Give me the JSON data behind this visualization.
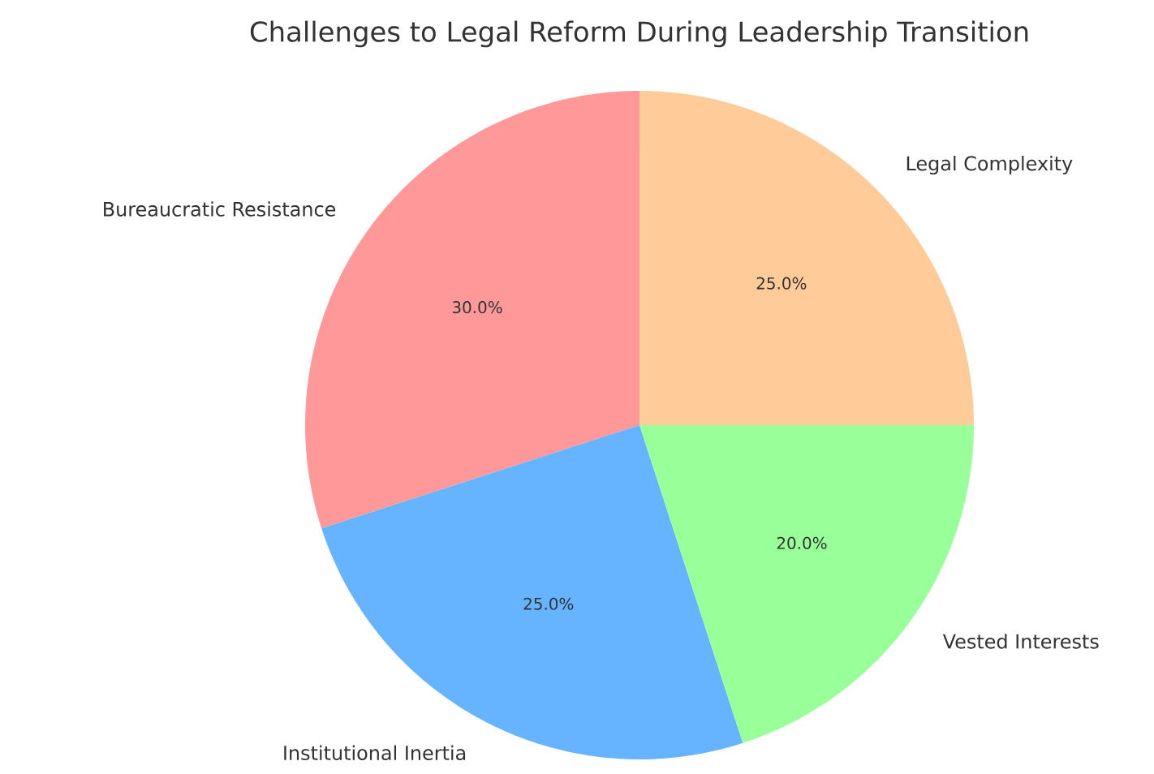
{
  "chart_data": {
    "type": "pie",
    "title": "Challenges to Legal Reform During Leadership Transition",
    "categories": [
      "Bureaucratic Resistance",
      "Institutional Inertia",
      "Vested Interests",
      "Legal Complexity"
    ],
    "values": [
      30,
      25,
      20,
      25
    ],
    "colors": [
      "#ff9999",
      "#66b3ff",
      "#99ff99",
      "#ffcc99"
    ],
    "value_labels": [
      "30.0%",
      "25.0%",
      "20.0%",
      "25.0%"
    ]
  }
}
